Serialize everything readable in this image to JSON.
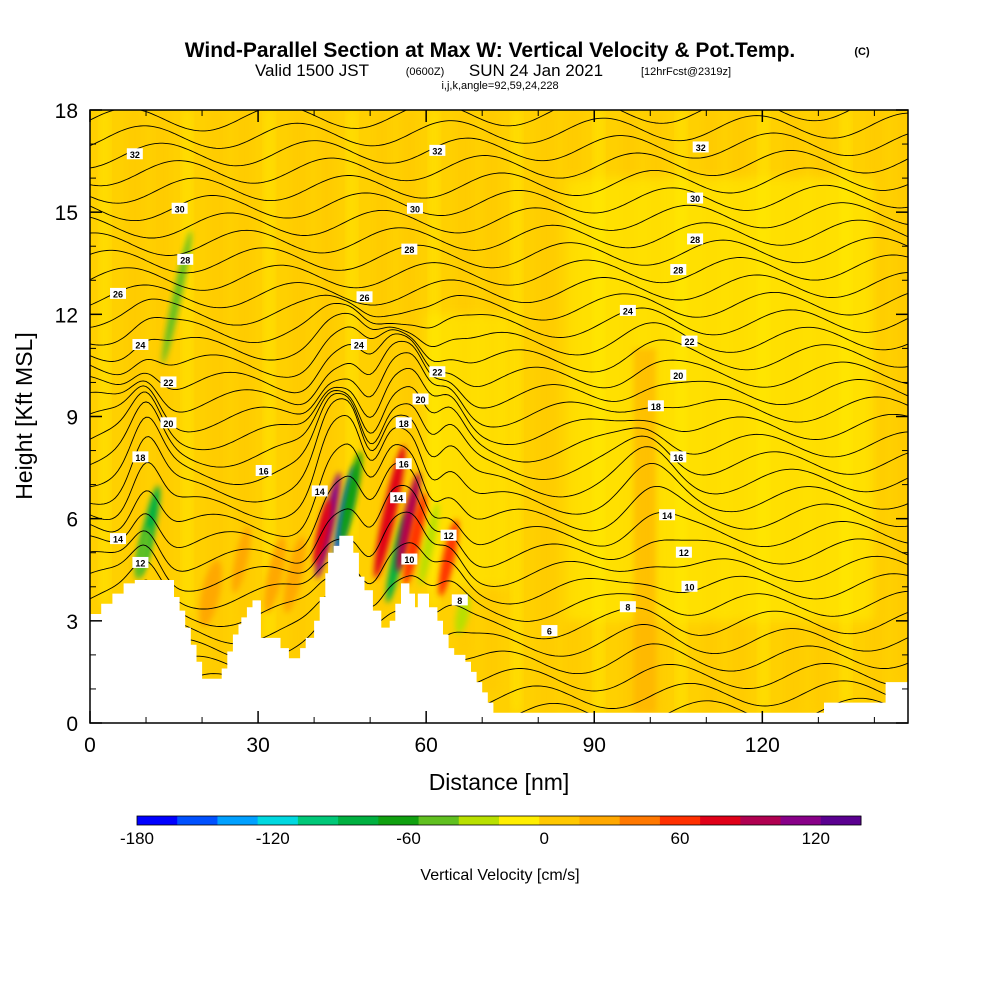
{
  "header": {
    "title": "Wind-Parallel Section at Max W: Vertical Velocity & Pot.Temp.",
    "copyright": "(C)",
    "valid_prefix": "Valid 1500 JST",
    "valid_utc": "(0600Z)",
    "valid_date": "SUN 24 Jan 2021",
    "forecast": "[12hrFcst@2319z]",
    "indices": "i,j,k,angle=92,59,24,228"
  },
  "chart_data": {
    "type": "heatmap",
    "xlabel": "Distance [nm]",
    "ylabel": "Height [Kft MSL]",
    "xlim": [
      0,
      146
    ],
    "ylim": [
      0,
      18
    ],
    "x_ticks": [
      "0",
      "30",
      "60",
      "90",
      "120"
    ],
    "x_tick_values": [
      0,
      30,
      60,
      90,
      120
    ],
    "y_ticks": [
      "0",
      "3",
      "6",
      "9",
      "12",
      "15",
      "18"
    ],
    "y_tick_values": [
      0,
      3,
      6,
      9,
      12,
      15,
      18
    ],
    "colorbar": {
      "label": "Vertical Velocity [cm/s]",
      "tick_labels": [
        "-180",
        "-120",
        "-60",
        "0",
        "60",
        "120"
      ],
      "tick_values": [
        -180,
        -120,
        -60,
        0,
        60,
        120
      ],
      "range": [
        -180,
        140
      ],
      "colors": [
        "#0000ff",
        "#0050ff",
        "#00a0ff",
        "#00d8e0",
        "#00c878",
        "#00b040",
        "#10a010",
        "#60c020",
        "#b8e000",
        "#ffee00",
        "#ffc800",
        "#ffa800",
        "#ff7800",
        "#ff3000",
        "#e00018",
        "#b00050",
        "#880088",
        "#5a0090"
      ]
    },
    "terrain": [
      [
        0,
        3.2
      ],
      [
        2,
        3.2
      ],
      [
        2,
        3.5
      ],
      [
        4,
        3.5
      ],
      [
        4,
        3.8
      ],
      [
        6,
        3.8
      ],
      [
        6,
        4.1
      ],
      [
        8,
        4.1
      ],
      [
        8,
        4.2
      ],
      [
        15,
        4.2
      ],
      [
        15,
        3.7
      ],
      [
        16,
        3.7
      ],
      [
        16,
        3.3
      ],
      [
        17,
        3.3
      ],
      [
        17,
        2.8
      ],
      [
        18,
        2.8
      ],
      [
        18,
        2.3
      ],
      [
        19,
        2.3
      ],
      [
        19,
        1.8
      ],
      [
        20,
        1.8
      ],
      [
        20,
        1.3
      ],
      [
        23.5,
        1.3
      ],
      [
        23.5,
        1.6
      ],
      [
        24.5,
        1.6
      ],
      [
        24.5,
        2.1
      ],
      [
        25.5,
        2.1
      ],
      [
        25.5,
        2.6
      ],
      [
        26.5,
        2.6
      ],
      [
        26.5,
        2.9
      ],
      [
        27,
        2.9
      ],
      [
        27,
        3.1
      ],
      [
        28,
        3.1
      ],
      [
        28,
        3.4
      ],
      [
        29,
        3.4
      ],
      [
        29,
        3.6
      ],
      [
        30.5,
        3.6
      ],
      [
        30.5,
        2.5
      ],
      [
        34,
        2.5
      ],
      [
        34,
        2.2
      ],
      [
        35.5,
        2.2
      ],
      [
        35.5,
        1.9
      ],
      [
        37.5,
        1.9
      ],
      [
        37.5,
        2.2
      ],
      [
        38.5,
        2.2
      ],
      [
        38.5,
        2.5
      ],
      [
        40,
        2.5
      ],
      [
        40,
        3.0
      ],
      [
        41,
        3.0
      ],
      [
        41,
        3.7
      ],
      [
        42,
        3.7
      ],
      [
        42,
        4.4
      ],
      [
        42.5,
        4.4
      ],
      [
        42.5,
        5.0
      ],
      [
        43.5,
        5.0
      ],
      [
        43.5,
        5.2
      ],
      [
        44.5,
        5.2
      ],
      [
        44.5,
        5.5
      ],
      [
        47,
        5.5
      ],
      [
        47,
        5.0
      ],
      [
        48,
        5.0
      ],
      [
        48,
        4.3
      ],
      [
        49,
        4.3
      ],
      [
        49,
        3.9
      ],
      [
        50.5,
        3.9
      ],
      [
        50.5,
        3.3
      ],
      [
        52,
        3.3
      ],
      [
        52,
        2.8
      ],
      [
        53.5,
        2.8
      ],
      [
        53.5,
        3.0
      ],
      [
        54.5,
        3.0
      ],
      [
        54.5,
        3.5
      ],
      [
        55.5,
        3.5
      ],
      [
        55.5,
        4.1
      ],
      [
        57,
        4.1
      ],
      [
        57,
        3.8
      ],
      [
        58,
        3.8
      ],
      [
        58,
        3.4
      ],
      [
        58.5,
        3.4
      ],
      [
        58.5,
        3.8
      ],
      [
        60.5,
        3.8
      ],
      [
        60.5,
        3.4
      ],
      [
        62,
        3.4
      ],
      [
        62,
        3.0
      ],
      [
        63,
        3.0
      ],
      [
        63,
        2.6
      ],
      [
        64,
        2.6
      ],
      [
        64,
        2.2
      ],
      [
        65,
        2.2
      ],
      [
        65,
        2.0
      ],
      [
        67,
        2.0
      ],
      [
        67,
        1.8
      ],
      [
        68,
        1.8
      ],
      [
        68,
        1.5
      ],
      [
        69,
        1.5
      ],
      [
        69,
        1.2
      ],
      [
        70,
        1.2
      ],
      [
        70,
        0.9
      ],
      [
        71,
        0.9
      ],
      [
        71,
        0.6
      ],
      [
        72,
        0.6
      ],
      [
        72,
        0.3
      ],
      [
        131,
        0.3
      ],
      [
        131,
        0.6
      ],
      [
        142,
        0.6
      ],
      [
        142,
        1.2
      ],
      [
        146,
        1.2
      ]
    ],
    "plumes": [
      {
        "x": 42.5,
        "w": 1.2,
        "y0": 4.2,
        "y1": 7.4,
        "value": 120
      },
      {
        "x": 41.5,
        "w": 1.2,
        "y0": 4.6,
        "y1": 6.6,
        "value": 80
      },
      {
        "x": 45.5,
        "w": 1.0,
        "y0": 4.8,
        "y1": 7.6,
        "value": -150
      },
      {
        "x": 46.5,
        "w": 1.3,
        "y0": 5.2,
        "y1": 8.0,
        "value": -60
      },
      {
        "x": 53.5,
        "w": 1.6,
        "y0": 4.2,
        "y1": 8.2,
        "value": 70
      },
      {
        "x": 54.8,
        "w": 1.2,
        "y0": 3.5,
        "y1": 6.2,
        "value": -90
      },
      {
        "x": 56.8,
        "w": 1.4,
        "y0": 4.4,
        "y1": 7.4,
        "value": 90
      },
      {
        "x": 58.0,
        "w": 1.4,
        "y0": 4.0,
        "y1": 6.8,
        "value": 60
      },
      {
        "x": 64.0,
        "w": 1.4,
        "y0": 3.7,
        "y1": 6.0,
        "value": 60
      },
      {
        "x": 10.5,
        "w": 1.4,
        "y0": 4.3,
        "y1": 7.0,
        "value": -80
      },
      {
        "x": 9.5,
        "w": 1.4,
        "y0": 4.2,
        "y1": 5.8,
        "value": -50
      },
      {
        "x": 15.5,
        "w": 0.8,
        "y0": 10.5,
        "y1": 14.5,
        "value": -40
      },
      {
        "x": 21.5,
        "w": 2.5,
        "y0": 2.8,
        "y1": 4.8,
        "value": 30
      },
      {
        "x": 33.0,
        "w": 2.0,
        "y0": 3.2,
        "y1": 5.5,
        "value": 30
      },
      {
        "x": 36.5,
        "w": 2.0,
        "y0": 3.2,
        "y1": 5.5,
        "value": 30
      },
      {
        "x": 27.0,
        "w": 1.5,
        "y0": 3.8,
        "y1": 5.8,
        "value": 20
      },
      {
        "x": 60.5,
        "w": 1.0,
        "y0": 4.0,
        "y1": 6.5,
        "value": -30
      },
      {
        "x": 66.5,
        "w": 1.5,
        "y0": 2.6,
        "y1": 3.8,
        "value": -30
      }
    ],
    "isentrope_values": [
      2,
      3,
      4,
      5,
      6,
      7,
      8,
      9,
      10,
      11,
      12,
      13,
      14,
      15,
      16,
      17,
      18,
      19,
      20,
      21,
      22,
      23,
      24,
      25,
      26,
      27,
      28,
      29,
      30,
      31,
      32,
      33,
      34,
      35,
      36
    ],
    "contour_labels": [
      {
        "text": "32",
        "x": 8,
        "y": 16.7
      },
      {
        "text": "32",
        "x": 62,
        "y": 16.8
      },
      {
        "text": "32",
        "x": 109,
        "y": 16.9
      },
      {
        "text": "30",
        "x": 16,
        "y": 15.1
      },
      {
        "text": "30",
        "x": 58,
        "y": 15.1
      },
      {
        "text": "30",
        "x": 108,
        "y": 15.4
      },
      {
        "text": "28",
        "x": 17,
        "y": 13.6
      },
      {
        "text": "28",
        "x": 57,
        "y": 13.9
      },
      {
        "text": "28",
        "x": 108,
        "y": 14.2
      },
      {
        "text": "28",
        "x": 105,
        "y": 13.3
      },
      {
        "text": "26",
        "x": 5,
        "y": 12.6
      },
      {
        "text": "26",
        "x": 49,
        "y": 12.5
      },
      {
        "text": "24",
        "x": 9,
        "y": 11.1
      },
      {
        "text": "24",
        "x": 48,
        "y": 11.1
      },
      {
        "text": "24",
        "x": 96,
        "y": 12.1
      },
      {
        "text": "22",
        "x": 14,
        "y": 10.0
      },
      {
        "text": "22",
        "x": 62,
        "y": 10.3
      },
      {
        "text": "22",
        "x": 107,
        "y": 11.2
      },
      {
        "text": "20",
        "x": 14,
        "y": 8.8
      },
      {
        "text": "20",
        "x": 59,
        "y": 9.5
      },
      {
        "text": "20",
        "x": 105,
        "y": 10.2
      },
      {
        "text": "18",
        "x": 9,
        "y": 7.8
      },
      {
        "text": "18",
        "x": 56,
        "y": 8.8
      },
      {
        "text": "18",
        "x": 101,
        "y": 9.3
      },
      {
        "text": "16",
        "x": 31,
        "y": 7.4
      },
      {
        "text": "16",
        "x": 56,
        "y": 7.6
      },
      {
        "text": "16",
        "x": 105,
        "y": 7.8
      },
      {
        "text": "14",
        "x": 41,
        "y": 6.8
      },
      {
        "text": "14",
        "x": 55,
        "y": 6.6
      },
      {
        "text": "14",
        "x": 5,
        "y": 5.4
      },
      {
        "text": "14",
        "x": 103,
        "y": 6.1
      },
      {
        "text": "12",
        "x": 9,
        "y": 4.7
      },
      {
        "text": "12",
        "x": 64,
        "y": 5.5
      },
      {
        "text": "12",
        "x": 106,
        "y": 5.0
      },
      {
        "text": "10",
        "x": 57,
        "y": 4.8
      },
      {
        "text": "10",
        "x": 107,
        "y": 4.0
      },
      {
        "text": "8",
        "x": 66,
        "y": 3.6
      },
      {
        "text": "8",
        "x": 96,
        "y": 3.4
      },
      {
        "text": "6",
        "x": 82,
        "y": 2.7
      }
    ]
  }
}
